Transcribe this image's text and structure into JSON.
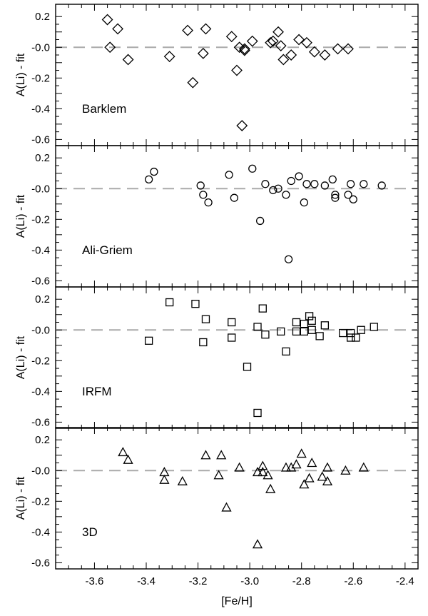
{
  "chart_data": {
    "type": "scatter",
    "xlabel": "[Fe/H]",
    "xlim": [
      -3.75,
      -2.35
    ],
    "xticks": [
      -3.6,
      -3.4,
      -3.2,
      -3.0,
      -2.8,
      -2.6,
      -2.4
    ],
    "xtick_labels": [
      "-3.6",
      "-3.4",
      "-3.2",
      "-3.0",
      "-2.8",
      "-2.6",
      "-2.4"
    ],
    "ylim": [
      -0.64,
      0.28
    ],
    "yticks": [
      0.2,
      0.0,
      -0.2,
      -0.4,
      -0.6
    ],
    "ytick_labels": [
      "0.2",
      "-0.0",
      "-0.2",
      "-0.4",
      "-0.6"
    ],
    "reference_line": 0.0,
    "panels": [
      {
        "label": "Barklem",
        "ylabel": "A(Li) - fit",
        "marker": "diamond",
        "points": [
          [
            -3.55,
            0.18
          ],
          [
            -3.51,
            0.12
          ],
          [
            -3.54,
            -0.0
          ],
          [
            -3.47,
            -0.08
          ],
          [
            -3.31,
            -0.06
          ],
          [
            -3.24,
            0.11
          ],
          [
            -3.22,
            -0.23
          ],
          [
            -3.17,
            0.12
          ],
          [
            -3.18,
            -0.04
          ],
          [
            -3.07,
            0.07
          ],
          [
            -3.05,
            -0.15
          ],
          [
            -3.04,
            -0.0
          ],
          [
            -3.03,
            -0.51
          ],
          [
            -3.02,
            -0.02
          ],
          [
            -3.02,
            -0.01
          ],
          [
            -2.99,
            0.04
          ],
          [
            -2.92,
            0.03
          ],
          [
            -2.91,
            0.04
          ],
          [
            -2.89,
            0.1
          ],
          [
            -2.88,
            0.01
          ],
          [
            -2.87,
            -0.08
          ],
          [
            -2.84,
            -0.05
          ],
          [
            -2.81,
            0.05
          ],
          [
            -2.78,
            0.03
          ],
          [
            -2.75,
            -0.03
          ],
          [
            -2.71,
            -0.05
          ],
          [
            -2.66,
            -0.01
          ],
          [
            -2.62,
            -0.01
          ]
        ]
      },
      {
        "label": "Ali-Griem",
        "ylabel": "A(Li) - fit",
        "marker": "circle",
        "points": [
          [
            -3.39,
            0.06
          ],
          [
            -3.37,
            0.11
          ],
          [
            -3.19,
            0.02
          ],
          [
            -3.18,
            -0.04
          ],
          [
            -3.16,
            -0.09
          ],
          [
            -3.08,
            0.09
          ],
          [
            -3.06,
            -0.06
          ],
          [
            -2.99,
            0.13
          ],
          [
            -2.96,
            -0.21
          ],
          [
            -2.94,
            0.03
          ],
          [
            -2.91,
            -0.01
          ],
          [
            -2.89,
            -0.0
          ],
          [
            -2.86,
            -0.04
          ],
          [
            -2.85,
            -0.46
          ],
          [
            -2.84,
            0.05
          ],
          [
            -2.81,
            0.08
          ],
          [
            -2.79,
            -0.09
          ],
          [
            -2.78,
            0.03
          ],
          [
            -2.75,
            0.03
          ],
          [
            -2.71,
            0.02
          ],
          [
            -2.68,
            0.06
          ],
          [
            -2.67,
            -0.06
          ],
          [
            -2.67,
            -0.04
          ],
          [
            -2.62,
            -0.04
          ],
          [
            -2.61,
            0.03
          ],
          [
            -2.6,
            -0.07
          ],
          [
            -2.56,
            0.03
          ],
          [
            -2.49,
            0.02
          ]
        ]
      },
      {
        "label": "IRFM",
        "ylabel": "A(Li) - fit",
        "marker": "square",
        "points": [
          [
            -3.39,
            -0.07
          ],
          [
            -3.31,
            0.18
          ],
          [
            -3.21,
            0.17
          ],
          [
            -3.17,
            0.07
          ],
          [
            -3.18,
            -0.08
          ],
          [
            -3.07,
            0.05
          ],
          [
            -3.07,
            -0.05
          ],
          [
            -3.01,
            -0.24
          ],
          [
            -2.97,
            0.02
          ],
          [
            -2.97,
            -0.54
          ],
          [
            -2.95,
            0.14
          ],
          [
            -2.94,
            -0.03
          ],
          [
            -2.88,
            -0.01
          ],
          [
            -2.86,
            -0.14
          ],
          [
            -2.82,
            0.05
          ],
          [
            -2.82,
            -0.01
          ],
          [
            -2.79,
            0.04
          ],
          [
            -2.79,
            -0.01
          ],
          [
            -2.77,
            0.09
          ],
          [
            -2.76,
            0.06
          ],
          [
            -2.76,
            -0.0
          ],
          [
            -2.73,
            -0.04
          ],
          [
            -2.71,
            0.03
          ],
          [
            -2.64,
            -0.02
          ],
          [
            -2.61,
            -0.02
          ],
          [
            -2.61,
            -0.05
          ],
          [
            -2.59,
            -0.05
          ],
          [
            -2.57,
            -0.0
          ],
          [
            -2.52,
            0.02
          ]
        ]
      },
      {
        "label": "3D",
        "ylabel": "A(Li) - fit",
        "marker": "triangle",
        "points": [
          [
            -3.49,
            0.12
          ],
          [
            -3.47,
            0.07
          ],
          [
            -3.33,
            -0.01
          ],
          [
            -3.33,
            -0.06
          ],
          [
            -3.26,
            -0.07
          ],
          [
            -3.17,
            0.1
          ],
          [
            -3.11,
            0.1
          ],
          [
            -3.12,
            -0.03
          ],
          [
            -3.09,
            -0.24
          ],
          [
            -3.04,
            0.02
          ],
          [
            -2.97,
            -0.01
          ],
          [
            -2.97,
            -0.48
          ],
          [
            -2.95,
            0.03
          ],
          [
            -2.95,
            -0.01
          ],
          [
            -2.93,
            -0.03
          ],
          [
            -2.92,
            -0.12
          ],
          [
            -2.86,
            0.02
          ],
          [
            -2.84,
            0.02
          ],
          [
            -2.82,
            0.04
          ],
          [
            -2.8,
            0.11
          ],
          [
            -2.79,
            -0.09
          ],
          [
            -2.77,
            -0.05
          ],
          [
            -2.76,
            0.05
          ],
          [
            -2.72,
            -0.04
          ],
          [
            -2.7,
            -0.07
          ],
          [
            -2.7,
            0.02
          ],
          [
            -2.63,
            0.0
          ],
          [
            -2.56,
            0.02
          ]
        ]
      }
    ]
  }
}
